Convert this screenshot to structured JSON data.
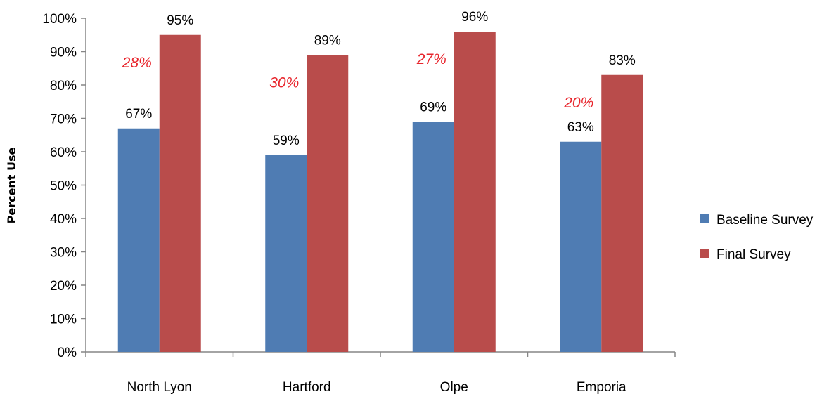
{
  "chart_data": {
    "type": "bar",
    "ylabel": "Percent Use",
    "xlabel": "",
    "title": "",
    "ylim": [
      0,
      100
    ],
    "yticks": [
      "0%",
      "10%",
      "20%",
      "30%",
      "40%",
      "50%",
      "60%",
      "70%",
      "80%",
      "90%",
      "100%"
    ],
    "categories": [
      "North Lyon",
      "Hartford",
      "Olpe",
      "Emporia"
    ],
    "series": [
      {
        "name": "Baseline Survey",
        "color": "#4F7CB3",
        "values": [
          67,
          59,
          69,
          63
        ],
        "labels": [
          "67%",
          "59%",
          "69%",
          "63%"
        ]
      },
      {
        "name": "Final Survey",
        "color": "#B94C4B",
        "values": [
          95,
          89,
          96,
          83
        ],
        "labels": [
          "95%",
          "89%",
          "96%",
          "83%"
        ]
      }
    ],
    "annotations": {
      "color": "#E8262D",
      "labels": [
        "28%",
        "30%",
        "27%",
        "20%"
      ]
    },
    "legend": "right",
    "grid": false
  }
}
